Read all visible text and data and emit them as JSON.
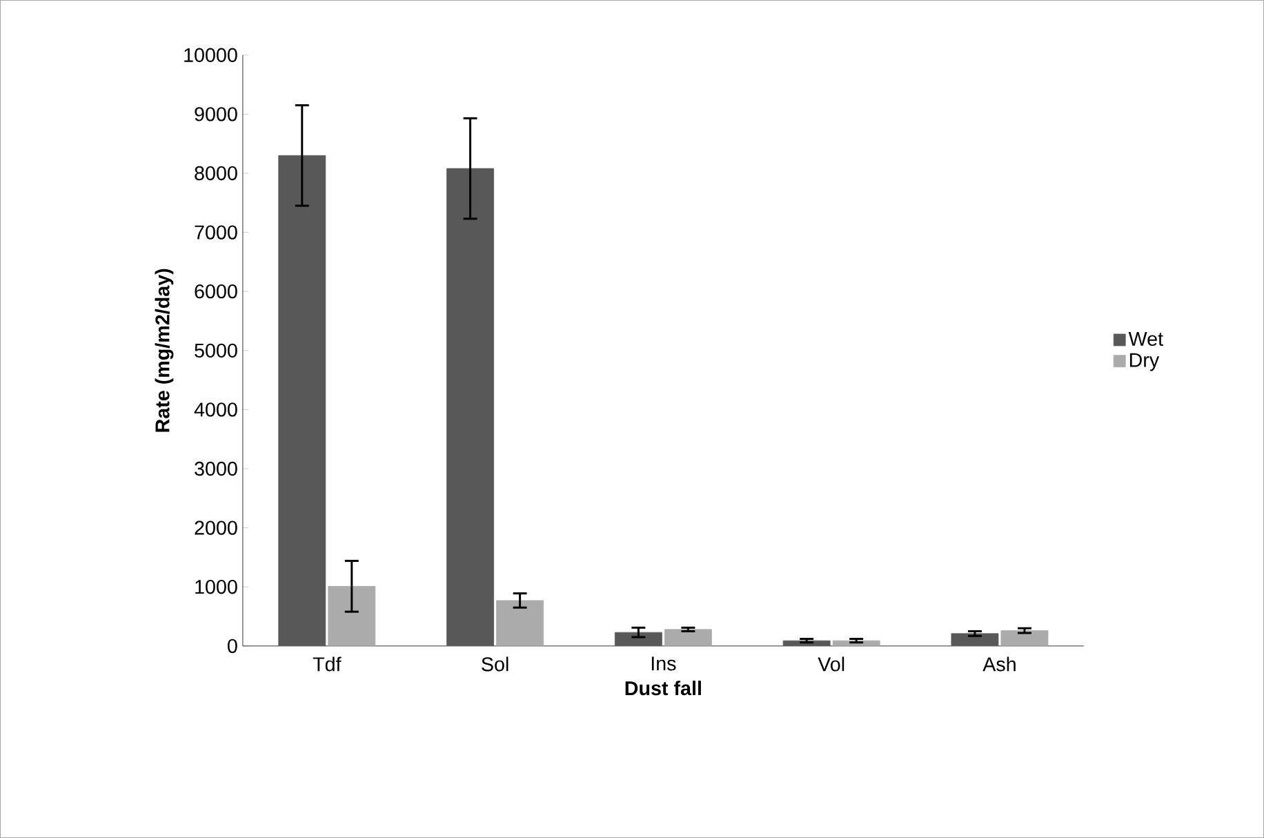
{
  "chart_data": {
    "type": "bar",
    "xlabel": "Dust fall",
    "ylabel": "Rate (mg/m2/day)",
    "categories": [
      "Tdf",
      "Sol",
      "Ins",
      "Vol",
      "Ash"
    ],
    "series": [
      {
        "name": "Wet",
        "color": "#585858",
        "values": [
          8300,
          8080,
          230,
          90,
          210
        ],
        "errors": [
          850,
          850,
          80,
          30,
          40
        ]
      },
      {
        "name": "Dry",
        "color": "#ababab",
        "values": [
          1010,
          770,
          280,
          90,
          260
        ],
        "errors": [
          430,
          120,
          30,
          30,
          40
        ]
      }
    ],
    "ylim": [
      0,
      10000
    ],
    "yticks": [
      0,
      1000,
      2000,
      3000,
      4000,
      5000,
      6000,
      7000,
      8000,
      9000,
      10000
    ],
    "legend": "right"
  }
}
